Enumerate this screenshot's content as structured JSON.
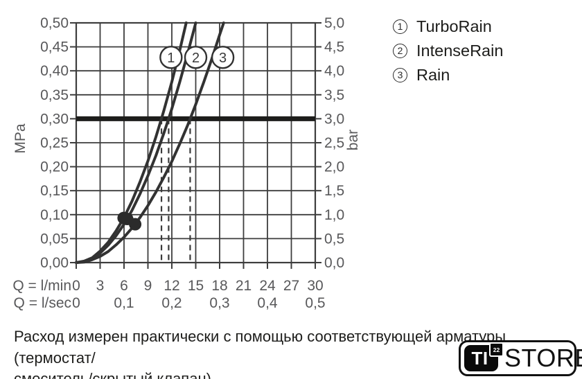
{
  "colors": {
    "grid": "#3d3d3d",
    "frame": "#3d3d3d",
    "curve": "#323232",
    "reference_line": "#1d1d1b",
    "dashed_guide": "#3a3a3a",
    "dot": "#2b2b2b",
    "tick_label": "#58585a",
    "text": "#1d1d1b",
    "background": "#ffffff"
  },
  "chart_data": {
    "type": "line",
    "title": "",
    "grid": true,
    "y_left": {
      "unit": "MPa",
      "range": [
        0,
        0.5
      ],
      "ticks": [
        {
          "value": 0.5,
          "label": "0,50"
        },
        {
          "value": 0.45,
          "label": "0,45"
        },
        {
          "value": 0.4,
          "label": "0,40"
        },
        {
          "value": 0.35,
          "label": "0,35"
        },
        {
          "value": 0.3,
          "label": "0,30"
        },
        {
          "value": 0.25,
          "label": "0,25"
        },
        {
          "value": 0.2,
          "label": "0,20"
        },
        {
          "value": 0.15,
          "label": "0,15"
        },
        {
          "value": 0.1,
          "label": "0,10"
        },
        {
          "value": 0.05,
          "label": "0,05"
        },
        {
          "value": 0.0,
          "label": "0,00"
        }
      ]
    },
    "y_right": {
      "unit": "bar",
      "range": [
        0,
        5
      ],
      "ticks": [
        {
          "value": 0.5,
          "label": "5,0"
        },
        {
          "value": 0.45,
          "label": "4,5"
        },
        {
          "value": 0.4,
          "label": "4,0"
        },
        {
          "value": 0.35,
          "label": "3,5"
        },
        {
          "value": 0.3,
          "label": "3,0"
        },
        {
          "value": 0.25,
          "label": "2,5"
        },
        {
          "value": 0.2,
          "label": "2,0"
        },
        {
          "value": 0.15,
          "label": "1,5"
        },
        {
          "value": 0.1,
          "label": "1,0"
        },
        {
          "value": 0.05,
          "label": "0,5"
        },
        {
          "value": 0.0,
          "label": "0,0"
        }
      ]
    },
    "x_rows": [
      {
        "label": "Q = l/min",
        "ticks": [
          {
            "value": 0,
            "label": "0"
          },
          {
            "value": 3,
            "label": "3"
          },
          {
            "value": 6,
            "label": "6"
          },
          {
            "value": 9,
            "label": "9"
          },
          {
            "value": 12,
            "label": "12"
          },
          {
            "value": 15,
            "label": "15"
          },
          {
            "value": 18,
            "label": "18"
          },
          {
            "value": 21,
            "label": "21"
          },
          {
            "value": 24,
            "label": "24"
          },
          {
            "value": 27,
            "label": "27"
          },
          {
            "value": 30,
            "label": "30"
          }
        ]
      },
      {
        "label": "Q = l/sec",
        "ticks": [
          {
            "value": 0,
            "label": "0"
          },
          {
            "value": 6,
            "label": "0,1"
          },
          {
            "value": 12,
            "label": "0,2"
          },
          {
            "value": 18,
            "label": "0,3"
          },
          {
            "value": 24,
            "label": "0,4"
          },
          {
            "value": 30,
            "label": "0,5"
          }
        ]
      }
    ],
    "x_range": [
      0,
      30
    ],
    "reference_line": {
      "value_mpa": 0.3,
      "value_bar": 3.0
    },
    "dashed_guides_lmin": [
      10.7,
      11.6,
      14.3
    ],
    "operating_points": [
      {
        "q_lmin": 5.95,
        "p_mpa": 0.093
      },
      {
        "q_lmin": 6.4,
        "p_mpa": 0.091
      },
      {
        "q_lmin": 7.4,
        "p_mpa": 0.08
      }
    ],
    "series": [
      {
        "name": "TurboRain",
        "marker": "1",
        "marker_pos": {
          "q_lmin": 11.9,
          "p_mpa": 0.428
        },
        "flow_at_0_3_mpa_lmin": 10.7,
        "points": [
          [
            0,
            0
          ],
          [
            1,
            0.003
          ],
          [
            2,
            0.01
          ],
          [
            3,
            0.024
          ],
          [
            4,
            0.042
          ],
          [
            5,
            0.066
          ],
          [
            6,
            0.094
          ],
          [
            7,
            0.128
          ],
          [
            8,
            0.168
          ],
          [
            9,
            0.212
          ],
          [
            10,
            0.262
          ],
          [
            10.7,
            0.3
          ],
          [
            11,
            0.317
          ],
          [
            12,
            0.377
          ],
          [
            13,
            0.443
          ],
          [
            13.8,
            0.5
          ]
        ]
      },
      {
        "name": "IntenseRain",
        "marker": "2",
        "marker_pos": {
          "q_lmin": 15.0,
          "p_mpa": 0.428
        },
        "flow_at_0_3_mpa_lmin": 11.6,
        "points": [
          [
            0,
            0
          ],
          [
            1,
            0.002
          ],
          [
            2,
            0.009
          ],
          [
            3,
            0.02
          ],
          [
            4,
            0.036
          ],
          [
            5,
            0.056
          ],
          [
            6,
            0.08
          ],
          [
            7,
            0.109
          ],
          [
            8,
            0.143
          ],
          [
            9,
            0.181
          ],
          [
            10,
            0.223
          ],
          [
            11,
            0.27
          ],
          [
            11.6,
            0.3
          ],
          [
            12,
            0.321
          ],
          [
            13,
            0.377
          ],
          [
            14,
            0.437
          ],
          [
            15,
            0.5
          ]
        ]
      },
      {
        "name": "Rain",
        "marker": "3",
        "marker_pos": {
          "q_lmin": 18.4,
          "p_mpa": 0.428
        },
        "flow_at_0_3_mpa_lmin": 14.3,
        "points": [
          [
            0,
            0
          ],
          [
            1,
            0.001
          ],
          [
            2,
            0.006
          ],
          [
            3,
            0.013
          ],
          [
            4,
            0.023
          ],
          [
            5,
            0.037
          ],
          [
            6,
            0.053
          ],
          [
            7,
            0.072
          ],
          [
            8,
            0.094
          ],
          [
            9,
            0.119
          ],
          [
            10,
            0.147
          ],
          [
            11,
            0.178
          ],
          [
            12,
            0.211
          ],
          [
            13,
            0.248
          ],
          [
            14,
            0.287
          ],
          [
            14.3,
            0.3
          ],
          [
            15,
            0.33
          ],
          [
            16,
            0.376
          ],
          [
            17,
            0.424
          ],
          [
            18,
            0.475
          ],
          [
            18.5,
            0.5
          ]
        ]
      }
    ]
  },
  "legend": {
    "items": [
      {
        "marker": "1",
        "label": "TurboRain"
      },
      {
        "marker": "2",
        "label": "IntenseRain"
      },
      {
        "marker": "3",
        "label": "Rain"
      }
    ]
  },
  "note": {
    "line1": "Расход измерен практически с помощью соответствующей арматуры (термостат/",
    "line2": "смеситель/скрытый клапан)."
  },
  "logo": {
    "ti": "TI",
    "sup": "22",
    "store": "STORE"
  }
}
